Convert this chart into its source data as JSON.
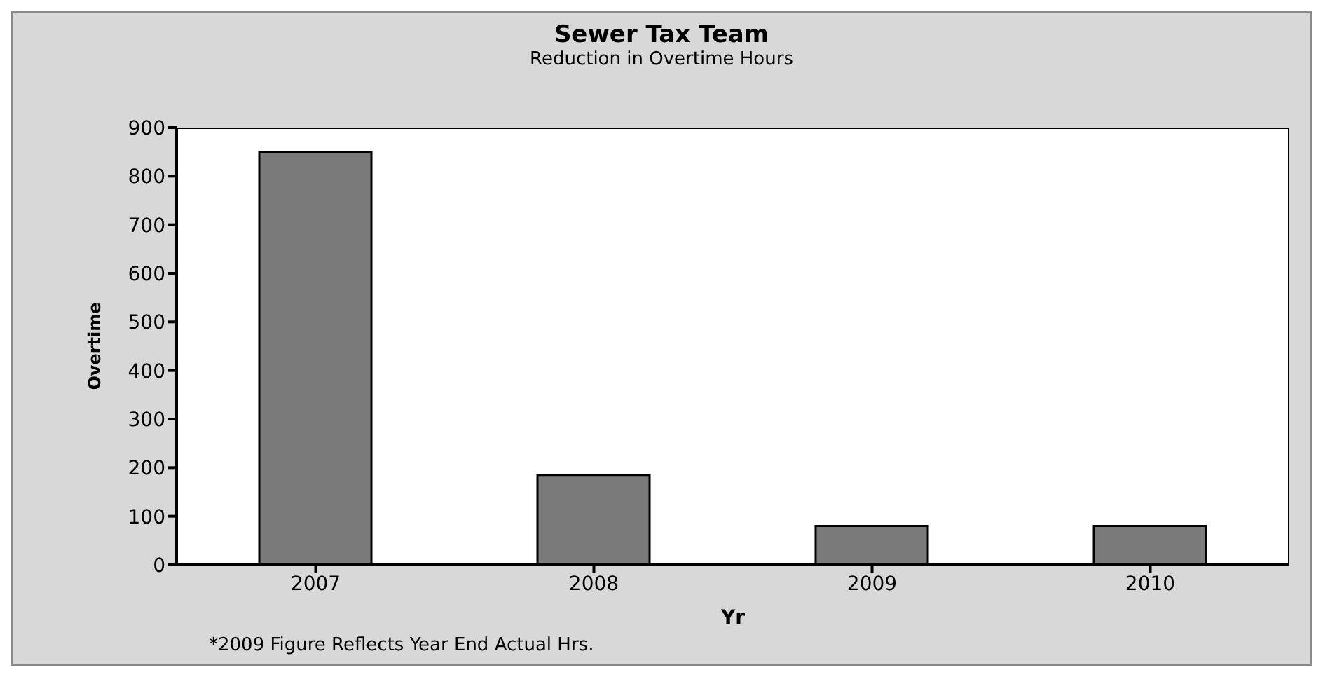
{
  "chart_data": {
    "type": "bar",
    "title": "Sewer Tax Team",
    "subtitle": "Reduction in Overtime Hours",
    "xlabel": "Yr",
    "ylabel": "Overtime",
    "categories": [
      "2007",
      "2008",
      "2009",
      "2010"
    ],
    "values": [
      850,
      185,
      80,
      80
    ],
    "color": "#7a7a7a",
    "ylim": [
      0,
      900
    ],
    "yticks": [
      0,
      100,
      200,
      300,
      400,
      500,
      600,
      700,
      800,
      900
    ],
    "grid": false,
    "annotations": [
      "*2009 Figure Reflects Year End Actual Hrs."
    ]
  }
}
